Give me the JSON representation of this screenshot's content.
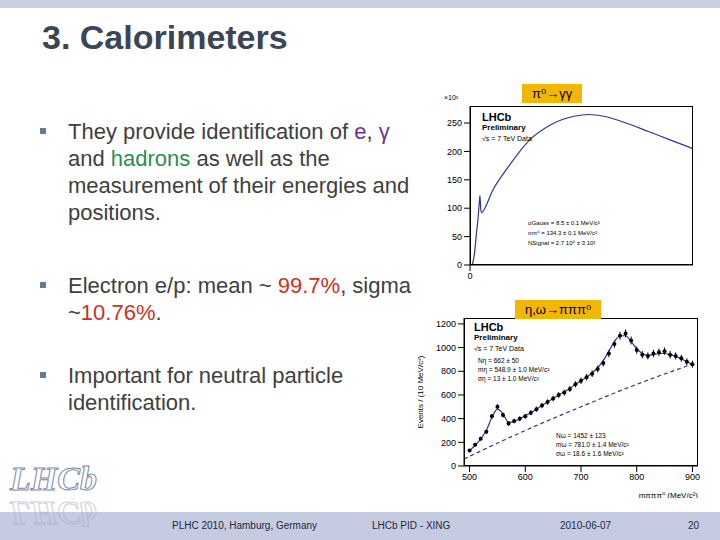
{
  "slide": {
    "title": "3. Calorimeters",
    "bullets": [
      [
        {
          "text": "They provide identification of "
        },
        {
          "text": "e",
          "color": "#7030a0"
        },
        {
          "text": ", "
        },
        {
          "text": "γ",
          "color": "#7030a0"
        },
        {
          "text": " and "
        },
        {
          "text": "hadrons",
          "color": "#2e8b57"
        },
        {
          "text": " as well as the measurement of their energies and positions."
        }
      ],
      [
        {
          "text": "Electron e/p: mean ~ "
        },
        {
          "text": "99.7%",
          "color": "#d03020"
        },
        {
          "text": ", sigma ~"
        },
        {
          "text": "10.76%",
          "color": "#d03020"
        },
        {
          "text": "."
        }
      ],
      [
        {
          "text": "Important for neutral particle identification."
        }
      ]
    ],
    "footer": [
      "PLHC 2010, Hamburg, Germany",
      "LHCb PID - XING",
      "2010-06-07",
      "20"
    ],
    "logo": "LHCb"
  },
  "chart_data": [
    {
      "type": "line",
      "title": "π⁰→γγ",
      "annotations": [
        "×10³",
        "LHCb",
        "Preliminary",
        "√s = 7 TeV Data",
        "σGauss = 8.5 ± 0.1 MeV/c²",
        "mπ⁰ = 134.3 ± 0.1 MeV/c²",
        "NSignal = 2.7 10⁵ ± 3 10³"
      ],
      "x": [
        30,
        60,
        90,
        110,
        125,
        134,
        145,
        160,
        200,
        300,
        500,
        800,
        1100,
        1400,
        1600,
        1800,
        2100,
        2400,
        2700,
        3000
      ],
      "values": [
        0,
        20,
        60,
        85,
        110,
        122,
        98,
        92,
        100,
        130,
        170,
        220,
        248,
        262,
        265,
        262,
        250,
        235,
        220,
        205
      ],
      "color": "#2b3990",
      "xlim": [
        0,
        3000
      ],
      "xticks": [
        0
      ],
      "ylim": [
        0,
        280
      ],
      "yticks": [
        0,
        50,
        100,
        150,
        200,
        250
      ]
    },
    {
      "type": "scatter",
      "title": "η,ω→πππ⁰",
      "x_label": "mπππ⁰ (MeV/c²)",
      "y_label": "Events / (10 MeV/c²)",
      "annotations": [
        "LHCb",
        "Preliminary",
        "√s = 7 TeV Data",
        "Nη = 662 ± 50",
        "mη = 548.9 ± 1.0 MeV/c²",
        "ση = 13 ± 1.0 MeV/c²",
        "Nω = 1452 ± 123",
        "mω = 781.0 ± 1.4 MeV/c²",
        "σω = 18.6 ± 1.6 MeV/c²"
      ],
      "xlim": [
        490,
        910
      ],
      "xticks": [
        500,
        600,
        700,
        800,
        900
      ],
      "ylim": [
        0,
        1250
      ],
      "yticks": [
        0,
        200,
        400,
        600,
        800,
        1000,
        1200
      ],
      "series": [
        {
          "type": "scatter",
          "marker": "circle",
          "color": "#000000",
          "x": [
            500,
            510,
            520,
            530,
            540,
            550,
            560,
            570,
            580,
            590,
            600,
            610,
            620,
            630,
            640,
            650,
            660,
            670,
            680,
            690,
            700,
            710,
            720,
            730,
            740,
            750,
            760,
            770,
            780,
            790,
            800,
            810,
            820,
            830,
            840,
            850,
            860,
            870,
            880,
            890,
            900
          ],
          "values": [
            130,
            180,
            230,
            290,
            420,
            500,
            430,
            360,
            380,
            400,
            420,
            450,
            480,
            510,
            540,
            570,
            600,
            620,
            650,
            690,
            720,
            750,
            780,
            820,
            870,
            950,
            1030,
            1100,
            1120,
            1060,
            980,
            940,
            930,
            950,
            960,
            970,
            940,
            930,
            910,
            880,
            860
          ],
          "errors": [
            11,
            13,
            15,
            17,
            20,
            22,
            21,
            19,
            19,
            20,
            20,
            21,
            22,
            23,
            23,
            24,
            24,
            25,
            25,
            26,
            27,
            27,
            28,
            29,
            29,
            31,
            32,
            33,
            33,
            33,
            31,
            31,
            30,
            31,
            31,
            31,
            31,
            30,
            30,
            30,
            29
          ]
        },
        {
          "type": "line",
          "line_style": "solid",
          "color": "#2b3990",
          "x": [
            500,
            510,
            520,
            530,
            540,
            550,
            560,
            570,
            580,
            590,
            600,
            610,
            620,
            630,
            640,
            650,
            660,
            670,
            680,
            690,
            700,
            710,
            720,
            730,
            740,
            750,
            760,
            770,
            780,
            790,
            800,
            810,
            820,
            830,
            840,
            850,
            860,
            870,
            880,
            890,
            900
          ],
          "values": [
            130,
            175,
            230,
            300,
            410,
            480,
            440,
            370,
            375,
            400,
            425,
            450,
            480,
            510,
            540,
            570,
            600,
            625,
            655,
            690,
            720,
            750,
            785,
            830,
            890,
            970,
            1050,
            1100,
            1100,
            1050,
            990,
            950,
            935,
            940,
            950,
            950,
            940,
            925,
            905,
            880,
            860
          ]
        },
        {
          "type": "line",
          "line_style": "dashed",
          "color": "#2b3990",
          "x": [
            490,
            600,
            700,
            800,
            900
          ],
          "values": [
            60,
            300,
            500,
            690,
            860
          ]
        }
      ]
    }
  ]
}
